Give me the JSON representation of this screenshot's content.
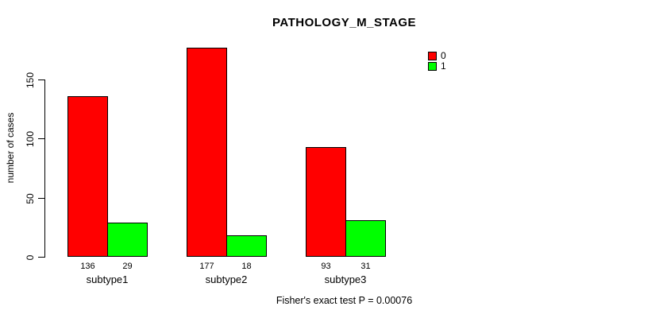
{
  "page": {
    "background": "#ffffff",
    "text_color": "#000000"
  },
  "chart": {
    "title": "PATHOLOGY_M_STAGE",
    "y_axis_label": "number of cases",
    "footer": "Fisher's exact test P = 0.00076"
  },
  "chart_data": {
    "type": "bar",
    "title": "PATHOLOGY_M_STAGE",
    "categories": [
      "subtype1",
      "subtype2",
      "subtype3"
    ],
    "series": [
      {
        "name": "0",
        "color": "#ff0000",
        "values": [
          136,
          177,
          93
        ]
      },
      {
        "name": "1",
        "color": "#00ff00",
        "values": [
          29,
          18,
          31
        ]
      }
    ],
    "xlabel": "",
    "ylabel": "number of cases",
    "ylim": [
      0,
      185
    ],
    "yticks": [
      0,
      50,
      100,
      150
    ],
    "grid": false,
    "legend_position": "top-right",
    "bar_value_labels_shown": true,
    "annotation": "Fisher's exact test P = 0.00076"
  }
}
